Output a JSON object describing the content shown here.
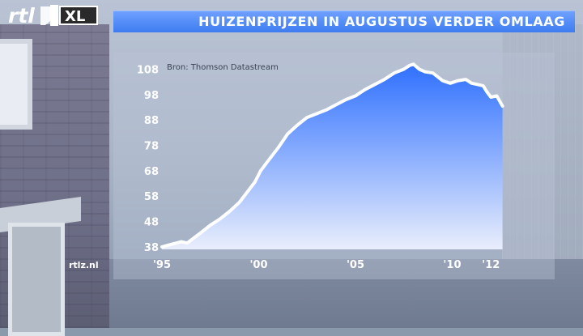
{
  "header": {
    "title": "HUIZENPRIJZEN IN AUGUSTUS VERDER OMLAAG",
    "logo_text_left": "rtl",
    "logo_text_right": "XL",
    "accent_color": "#3d7cf0"
  },
  "source_note": "Bron: Thomson Datastream",
  "footer": {
    "site": "rtlz.nl"
  },
  "chart_data": {
    "type": "area",
    "title": "",
    "xlabel": "",
    "ylabel": "",
    "x_tick_labels": [
      "'95",
      "'00",
      "'05",
      "'10",
      "'12"
    ],
    "x_tick_values": [
      1995,
      2000,
      2005,
      2010,
      2012
    ],
    "y_ticks": [
      38,
      48,
      58,
      68,
      78,
      88,
      98,
      108
    ],
    "ylim": [
      37,
      112
    ],
    "xlim": [
      1995,
      2012.7
    ],
    "line_color": "#ffffff",
    "fill_top_color": "#2f70ff",
    "fill_bottom_color": "#e9eefc",
    "grid": false,
    "series": [
      {
        "x": [
          1995.0,
          1995.5,
          1996.0,
          1996.3,
          1997.0,
          1997.5,
          1998.0,
          1998.5,
          1999.0,
          1999.5,
          1999.8,
          2000.0,
          2000.1,
          2000.5,
          2001.0,
          2001.5,
          2002.0,
          2002.5,
          2003.0,
          2003.5,
          2004.0,
          2004.5,
          2005.0,
          2005.5,
          2006.0,
          2006.5,
          2007.0,
          2007.5,
          2007.8,
          2008.0,
          2008.3,
          2008.6,
          2009.0,
          2009.5,
          2009.9,
          2010.3,
          2010.7,
          2011.0,
          2011.3,
          2011.6,
          2011.8,
          2012.0,
          2012.3,
          2012.6
        ],
        "values": [
          38.0,
          39.0,
          40.0,
          39.5,
          43.5,
          46.5,
          49.0,
          52.0,
          55.5,
          60.5,
          63.5,
          66.5,
          68.0,
          72.0,
          77.0,
          82.5,
          86.0,
          89.0,
          90.5,
          92.0,
          94.0,
          96.0,
          97.5,
          100.0,
          102.0,
          104.0,
          106.5,
          108.0,
          109.5,
          110.0,
          108.0,
          107.0,
          106.5,
          103.5,
          102.5,
          103.5,
          104.0,
          102.5,
          102.0,
          101.5,
          99.0,
          97.0,
          97.5,
          93.5
        ]
      }
    ]
  }
}
